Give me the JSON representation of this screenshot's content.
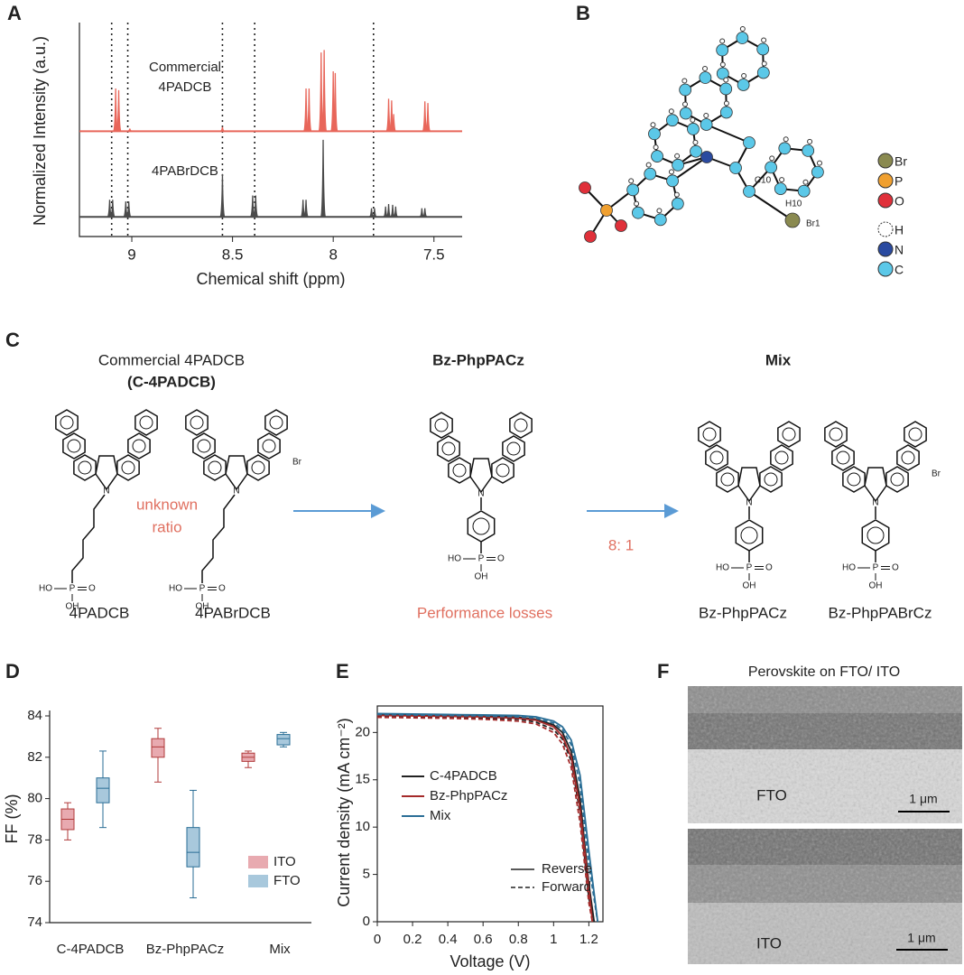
{
  "panel_labels": [
    "A",
    "B",
    "C",
    "D",
    "E",
    "F"
  ],
  "chart_data": [
    {
      "type": "nmr",
      "xlabel": "Chemical shift (ppm)",
      "ylabel": "Normalized Intensity (a.u.)",
      "xlim": [
        9.26,
        7.36
      ],
      "ylim": [
        0,
        2.5
      ],
      "xticks": [
        9,
        8.5,
        8,
        7.5
      ],
      "reference_lines": [
        9.1,
        9.02,
        8.55,
        8.39,
        7.8
      ],
      "series": [
        {
          "label_lines": [
            "Commercial",
            "4PADCB"
          ],
          "color": "#e8665a",
          "offset": 1.23,
          "x": [
            9.08,
            9.065,
            9.01,
            8.55,
            8.135,
            8.12,
            8.06,
            8.045,
            8.0,
            7.99,
            7.725,
            7.71,
            7.7,
            7.545,
            7.53
          ],
          "values": [
            0.5,
            0.48,
            0.03,
            0.05,
            0.5,
            0.5,
            0.92,
            0.95,
            0.7,
            0.68,
            0.38,
            0.36,
            0.2,
            0.35,
            0.33
          ]
        },
        {
          "name": "4PABrDCB",
          "color": "#4a4a4a",
          "offset": 0.23,
          "x": [
            9.11,
            9.095,
            9.03,
            9.015,
            8.55,
            8.4,
            8.385,
            8.15,
            8.135,
            8.05,
            7.81,
            7.795,
            7.74,
            7.725,
            7.705,
            7.69,
            7.56,
            7.545
          ],
          "values": [
            0.2,
            0.2,
            0.18,
            0.18,
            0.5,
            0.25,
            0.25,
            0.2,
            0.2,
            0.9,
            0.1,
            0.1,
            0.12,
            0.15,
            0.14,
            0.12,
            0.1,
            0.1
          ]
        }
      ]
    },
    {
      "type": "box",
      "ylabel": "FF (%)",
      "categories": [
        "C-4PADCB",
        "Bz-PhpPACz",
        "Mix"
      ],
      "ylim": [
        74,
        84
      ],
      "yticks": [
        74,
        76,
        78,
        80,
        82,
        84
      ],
      "legend": "lower right",
      "series": [
        {
          "name": "ITO",
          "color": "#e8aab0",
          "edge": "#b03a3a",
          "min": [
            78.0,
            80.8,
            81.5
          ],
          "q1": [
            78.5,
            82.0,
            81.8
          ],
          "median": [
            79.0,
            82.5,
            82.0
          ],
          "q3": [
            79.5,
            82.9,
            82.2
          ],
          "max": [
            79.8,
            83.4,
            82.3
          ]
        },
        {
          "name": "FTO",
          "color": "#a8c8dc",
          "edge": "#2a6e96",
          "min": [
            78.6,
            75.2,
            82.5
          ],
          "q1": [
            79.8,
            76.7,
            82.6
          ],
          "median": [
            80.5,
            77.4,
            82.9
          ],
          "q3": [
            81.0,
            78.6,
            83.1
          ],
          "max": [
            82.3,
            80.4,
            83.2
          ]
        }
      ]
    },
    {
      "type": "line",
      "xlabel": "Voltage (V)",
      "ylabel": "Current density (mA cm⁻²)",
      "xlim": [
        0,
        1.28
      ],
      "ylim": [
        0,
        22.8
      ],
      "xticks": [
        0,
        0.2,
        0.4,
        0.6,
        0.8,
        1,
        1.2
      ],
      "yticks": [
        0,
        5,
        10,
        15,
        20
      ],
      "linestyles": [
        "Reverse",
        "Forward"
      ],
      "series": [
        {
          "name": "C-4PADCB",
          "color": "#222222",
          "x": [
            0,
            0.2,
            0.4,
            0.6,
            0.8,
            0.9,
            1.0,
            1.05,
            1.1,
            1.15,
            1.2,
            1.23
          ],
          "values": [
            21.9,
            21.85,
            21.8,
            21.75,
            21.6,
            21.4,
            20.8,
            20.0,
            18.0,
            13.0,
            4.0,
            0
          ],
          "forward": [
            21.7,
            21.65,
            21.6,
            21.5,
            21.4,
            21.1,
            20.3,
            19.3,
            17.0,
            11.5,
            2.5,
            0
          ]
        },
        {
          "name": "Bz-PhpPACz",
          "color": "#a52a2a",
          "x": [
            0,
            0.2,
            0.4,
            0.6,
            0.8,
            0.9,
            1.0,
            1.05,
            1.1,
            1.15,
            1.2,
            1.22
          ],
          "values": [
            21.8,
            21.75,
            21.7,
            21.65,
            21.5,
            21.3,
            20.6,
            19.6,
            17.4,
            12.0,
            3.5,
            0
          ],
          "forward": [
            21.6,
            21.55,
            21.5,
            21.4,
            21.2,
            20.9,
            20.0,
            18.8,
            16.3,
            10.5,
            2.0,
            0
          ]
        },
        {
          "name": "Mix",
          "color": "#2a6e96",
          "x": [
            0,
            0.2,
            0.4,
            0.6,
            0.8,
            0.9,
            1.0,
            1.05,
            1.1,
            1.15,
            1.2,
            1.25
          ],
          "values": [
            22.0,
            21.95,
            21.9,
            21.85,
            21.8,
            21.65,
            21.2,
            20.6,
            19.2,
            15.5,
            7.5,
            0
          ],
          "forward": [
            21.9,
            21.85,
            21.8,
            21.75,
            21.65,
            21.5,
            21.0,
            20.3,
            18.7,
            14.5,
            6.0,
            0
          ]
        }
      ]
    }
  ],
  "crystal": {
    "atom_labels": [
      "C10",
      "H10",
      "Br1"
    ],
    "legend": [
      "Br",
      "P",
      "O",
      "H",
      "N",
      "C"
    ]
  },
  "scheme": {
    "title_commercial": [
      "Commercial 4PADCB",
      "(C-4PADCB)"
    ],
    "unknown_ratio": [
      "unknown",
      "ratio"
    ],
    "title_bz": "Bz-PhpPACz",
    "title_mix": "Mix",
    "ratio": "8: 1",
    "performance": "Performance losses",
    "names": [
      "4PADCB",
      "4PABrDCB",
      "Bz-PhpPACz",
      "Bz-PhpPABrCz"
    ],
    "atoms": [
      "HO",
      "P",
      "O",
      "OH",
      "N",
      "Br"
    ]
  },
  "sem": {
    "title": "Perovskite on FTO/ ITO",
    "labels": [
      "FTO",
      "ITO"
    ],
    "scale": "1 μm"
  }
}
